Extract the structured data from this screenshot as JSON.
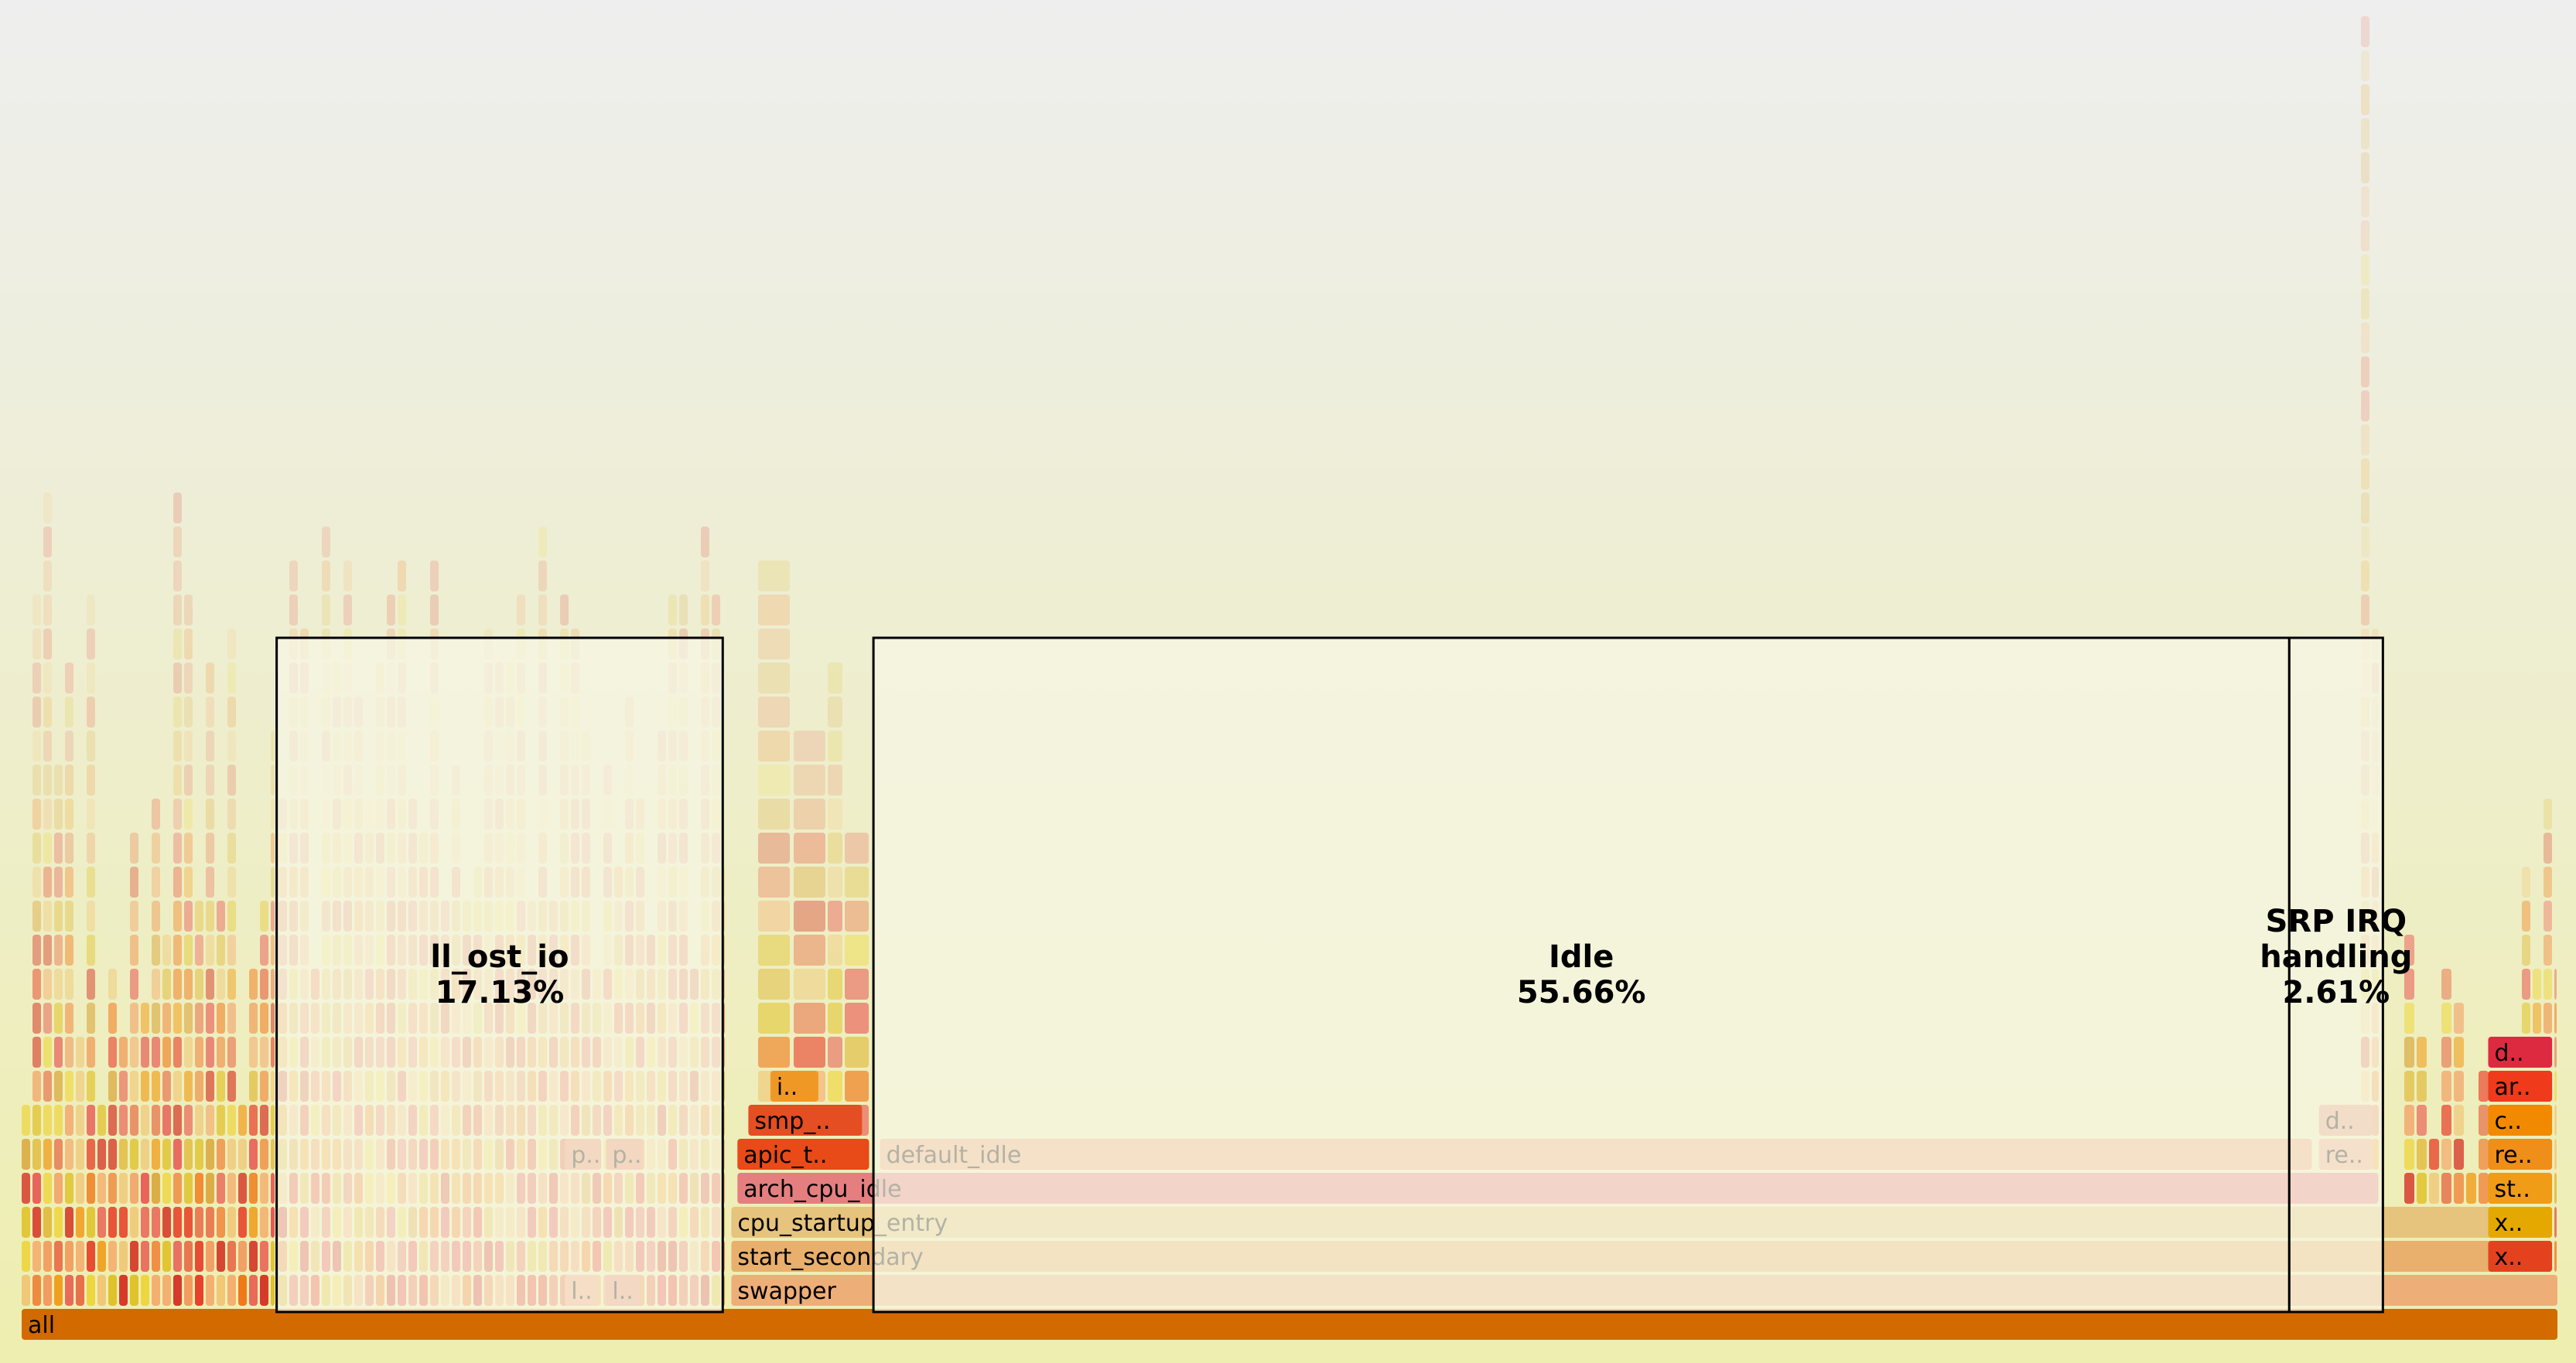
{
  "chart_data": {
    "type": "flame graph",
    "frames": [
      {
        "name": "all",
        "depth": 0,
        "start": 0.0,
        "width": 1.0,
        "color": "#d26a00"
      },
      {
        "name": "swapper",
        "depth": 1,
        "start": 0.2797,
        "width": 0.7203,
        "color": "#eeae78"
      },
      {
        "name": "start_secondary",
        "depth": 2,
        "start": 0.2797,
        "width": 0.6988,
        "color": "#e8b06c"
      },
      {
        "name": "cpu_startup_entry",
        "depth": 3,
        "start": 0.2797,
        "width": 0.6988,
        "color": "#e6c47e"
      },
      {
        "name": "arch_cpu_idle",
        "depth": 4,
        "start": 0.2821,
        "width": 0.6472,
        "color": "#e57f7f"
      },
      {
        "name": "default_idle",
        "depth": 5,
        "start": 0.3383,
        "width": 0.5649,
        "color": "#f0a47e"
      },
      {
        "name": "apic_t..",
        "depth": 5,
        "start": 0.2821,
        "width": 0.0525,
        "color": "#e84a18"
      },
      {
        "name": "smp_..",
        "depth": 6,
        "start": 0.2864,
        "width": 0.0454,
        "color": "#e44e22"
      },
      {
        "name": "i..",
        "depth": 7,
        "start": 0.2951,
        "width": 0.0195,
        "color": "#f09826"
      },
      {
        "name": "re..",
        "depth": 5,
        "start": 0.9054,
        "width": 0.0219,
        "color": "#f0a88a"
      },
      {
        "name": "d..",
        "depth": 6,
        "start": 0.9054,
        "width": 0.0219,
        "color": "#e49a82"
      },
      {
        "name": "p..",
        "depth": 5,
        "start": 0.2141,
        "width": 0.0147,
        "color": "#ee8e6a"
      },
      {
        "name": "p..",
        "depth": 5,
        "start": 0.2303,
        "width": 0.0147,
        "color": "#e98566"
      },
      {
        "name": "l..",
        "depth": 1,
        "start": 0.2141,
        "width": 0.0142,
        "color": "#f29a74"
      },
      {
        "name": "l..",
        "depth": 1,
        "start": 0.2303,
        "width": 0.0142,
        "color": "#ea8a70"
      },
      {
        "name": "x..",
        "depth": 2,
        "start": 0.9721,
        "width": 0.0258,
        "color": "#e4421e"
      },
      {
        "name": "x..",
        "depth": 3,
        "start": 0.9721,
        "width": 0.0258,
        "color": "#e4a800"
      },
      {
        "name": "st..",
        "depth": 4,
        "start": 0.9721,
        "width": 0.0258,
        "color": "#f09c16"
      },
      {
        "name": "re..",
        "depth": 5,
        "start": 0.9721,
        "width": 0.0258,
        "color": "#f08e1a"
      },
      {
        "name": "c..",
        "depth": 6,
        "start": 0.9721,
        "width": 0.0258,
        "color": "#f28a00"
      },
      {
        "name": "ar..",
        "depth": 7,
        "start": 0.9721,
        "width": 0.0258,
        "color": "#f03a1c"
      },
      {
        "name": "d..",
        "depth": 8,
        "start": 0.9721,
        "width": 0.0258,
        "color": "#dd2a40"
      }
    ],
    "annotations": [
      {
        "name": "ll_ost_io",
        "percent": "17.13%",
        "start": 0.1005,
        "end": 0.2763
      },
      {
        "name": "Idle",
        "percent": "55.66%",
        "start": 0.3357,
        "end": 0.8937
      },
      {
        "name": "SRP IRQ",
        "name2": "handling",
        "percent": "2.61%",
        "start": 0.8937,
        "end": 0.9306
      }
    ]
  }
}
